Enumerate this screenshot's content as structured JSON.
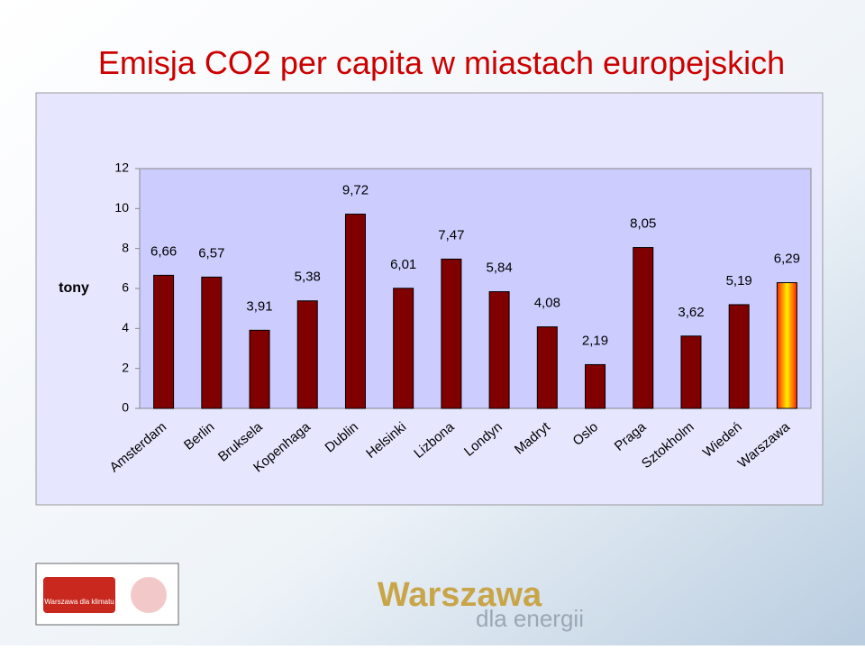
{
  "chart_data": {
    "type": "bar",
    "title": "Emisja CO2 per capita w miastach europejskich",
    "y_label": "tony",
    "categories": [
      "Amsterdam",
      "Berlin",
      "Bruksela",
      "Kopenhaga",
      "Dublin",
      "Helsinki",
      "Lizbona",
      "Londyn",
      "Madryt",
      "Oslo",
      "Praga",
      "Sztokholm",
      "Wiedeń",
      "Warszawa"
    ],
    "values": [
      6.66,
      6.57,
      3.91,
      5.38,
      9.72,
      6.01,
      7.47,
      5.84,
      4.08,
      2.19,
      8.05,
      3.62,
      5.19,
      6.29
    ],
    "value_labels": [
      "6,66",
      "6,57",
      "3,91",
      "5,38",
      "9,72",
      "6,01",
      "7,47",
      "5,84",
      "4,08",
      "2,19",
      "8,05",
      "3,62",
      "5,19",
      "6,29"
    ],
    "colors": [
      "#800000",
      "#800000",
      "#800000",
      "#800000",
      "#800000",
      "#800000",
      "#800000",
      "#800000",
      "#800000",
      "#800000",
      "#800000",
      "#800000",
      "#800000",
      "#ff3300"
    ],
    "ylim": [
      0,
      12
    ],
    "yticks": [
      0,
      2,
      4,
      6,
      8,
      10,
      12
    ]
  },
  "footer": {
    "logo_left": "Warszawa dla klimatu",
    "logo_main": "Warszawa",
    "logo_tagline": "dla energii"
  }
}
